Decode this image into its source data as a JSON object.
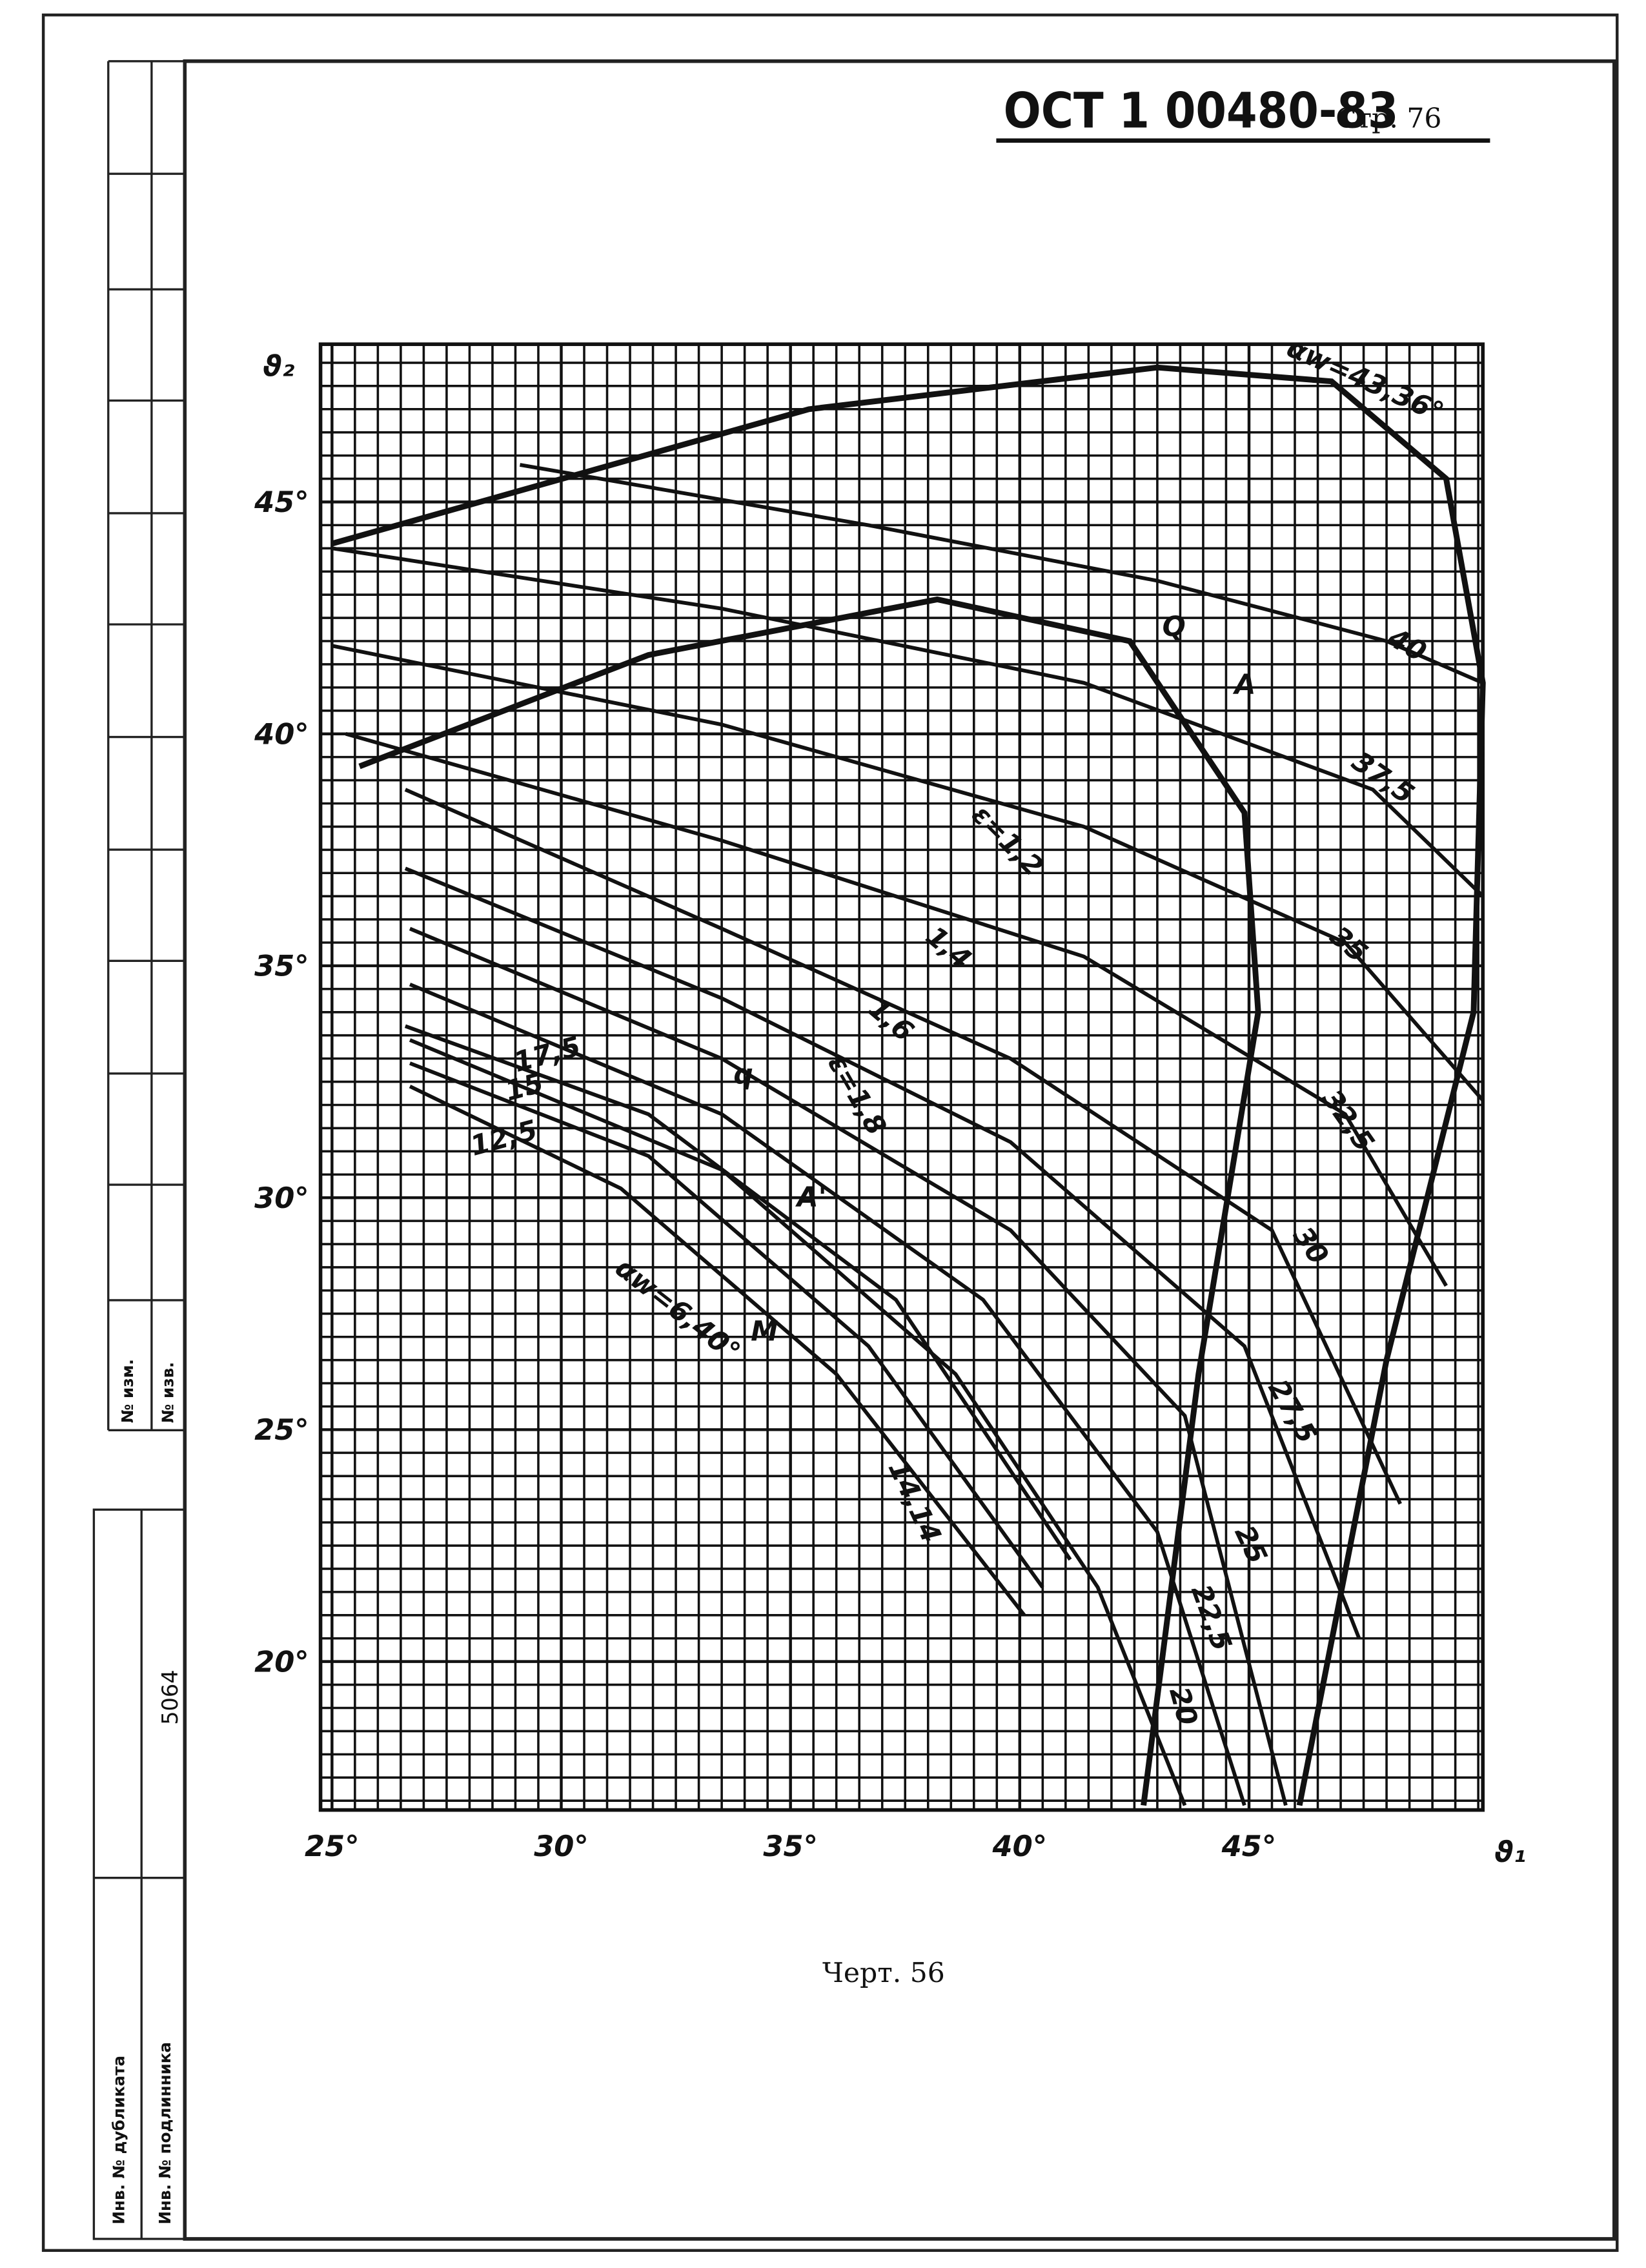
{
  "header": {
    "code": "ОСТ 1 00480-83",
    "page": "Стр. 76"
  },
  "caption": "Черт. 56",
  "side_stamp": {
    "number": "5064",
    "change_labels": [
      "№ изм.",
      "№ изв."
    ],
    "inventory_labels": [
      "Инв. № дубликата",
      "Инв. № подлинника"
    ]
  },
  "chart_data": {
    "type": "line",
    "x_label": "ϑ₁",
    "y_label": "ϑ₂",
    "xlim": [
      24.75,
      50.1
    ],
    "ylim": [
      16.8,
      48.4
    ],
    "xticks": [
      {
        "value": 25,
        "label": "25°"
      },
      {
        "value": 30,
        "label": "30°"
      },
      {
        "value": 35,
        "label": "35°"
      },
      {
        "value": 40,
        "label": "40°"
      },
      {
        "value": 45,
        "label": "45°"
      }
    ],
    "yticks": [
      {
        "value": 20,
        "label": "20°"
      },
      {
        "value": 25,
        "label": "25°"
      },
      {
        "value": 30,
        "label": "30°"
      },
      {
        "value": 35,
        "label": "35°"
      },
      {
        "value": 40,
        "label": "40°"
      },
      {
        "value": 45,
        "label": "45°"
      }
    ],
    "grid": true,
    "series": [
      {
        "name": "αw=43,36°",
        "color": "#111",
        "x": [
          25,
          35.4,
          43,
          46.8,
          49.3,
          50.1,
          49.9,
          48,
          46.1
        ],
        "values": [
          44.1,
          47,
          47.9,
          47.6,
          45.5,
          41.1,
          34,
          26.5,
          16.9
        ]
      },
      {
        "name": "αw=6,40°",
        "color": "#111",
        "x": [
          25.6,
          31.9,
          38.2,
          42.4,
          44.9,
          45.2,
          43.9,
          42.7
        ],
        "values": [
          39.3,
          41.7,
          42.9,
          42,
          38.3,
          34,
          26.2,
          16.9
        ]
      },
      {
        "name": "40",
        "color": "#111",
        "x": [
          29.1,
          36.7,
          43,
          48,
          50.1
        ],
        "values": [
          45.8,
          44.5,
          43.3,
          42,
          41.1
        ]
      },
      {
        "name": "37,5",
        "color": "#111",
        "x": [
          25,
          33.5,
          41.4,
          47.7,
          50.1
        ],
        "values": [
          44,
          42.7,
          41.1,
          38.8,
          36.5
        ]
      },
      {
        "name": "35",
        "color": "#111",
        "x": [
          25,
          33.5,
          41.4,
          47.1,
          50.1
        ],
        "values": [
          41.9,
          40.2,
          38,
          35.5,
          32.1
        ]
      },
      {
        "name": "32,5",
        "color": "#111",
        "x": [
          25.3,
          33.5,
          41.4,
          47.1,
          49.3
        ],
        "values": [
          40,
          37.7,
          35.2,
          31.8,
          28.1
        ]
      },
      {
        "name": "30",
        "color": "#111",
        "x": [
          26.6,
          33.5,
          39.8,
          45.5,
          48.3
        ],
        "values": [
          38.8,
          35.8,
          33,
          29.3,
          23.4
        ]
      },
      {
        "name": "27,5",
        "color": "#111",
        "x": [
          26.6,
          33.5,
          39.8,
          44.9,
          47.4
        ],
        "values": [
          37.1,
          34.3,
          31.2,
          26.8,
          20.5
        ]
      },
      {
        "name": "25",
        "color": "#111",
        "x": [
          26.7,
          33.5,
          39.8,
          43.6,
          45.8
        ],
        "values": [
          35.8,
          33,
          29.3,
          25.3,
          16.9
        ]
      },
      {
        "name": "22,5",
        "color": "#111",
        "x": [
          26.7,
          33.5,
          39.2,
          43,
          44.9
        ],
        "values": [
          34.6,
          31.8,
          27.8,
          22.8,
          16.9
        ]
      },
      {
        "name": "20",
        "color": "#111",
        "x": [
          26.7,
          33.5,
          38.6,
          41.7,
          43.6
        ],
        "values": [
          33.4,
          30.6,
          26.2,
          21.6,
          16.9
        ]
      },
      {
        "name": "17,5",
        "color": "#111",
        "x": [
          26.6,
          31.9,
          37.3,
          41.1
        ],
        "values": [
          33.7,
          31.8,
          27.8,
          22.2
        ]
      },
      {
        "name": "15",
        "color": "#111",
        "x": [
          26.7,
          31.9,
          36.7,
          40.5
        ],
        "values": [
          32.9,
          30.9,
          26.8,
          21.6
        ]
      },
      {
        "name": "12,5",
        "color": "#111",
        "x": [
          26.7,
          31.3,
          36,
          40.1
        ],
        "values": [
          32.4,
          30.2,
          26.2,
          21
        ]
      }
    ],
    "annotations": [
      "ε=1,2",
      "1,4",
      "1,6",
      "ε=1,8",
      "14,14",
      "Q",
      "A",
      "q",
      "A'",
      "M"
    ]
  }
}
